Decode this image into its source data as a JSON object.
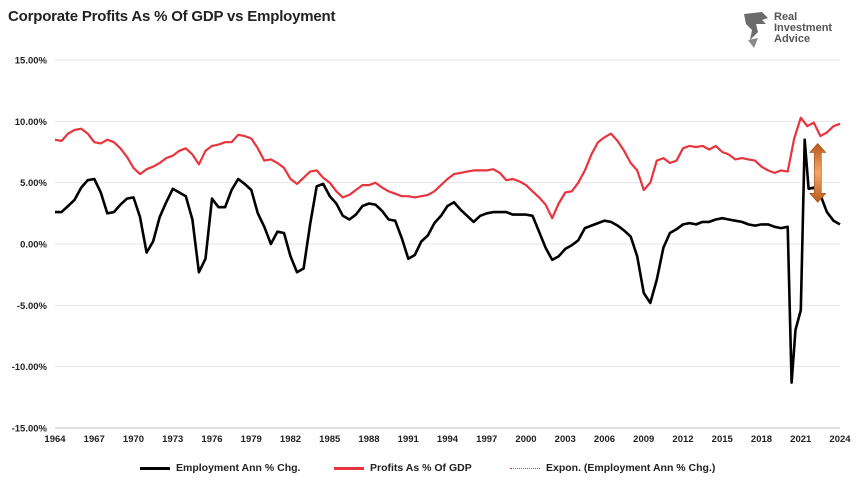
{
  "header": {
    "title": "Corporate Profits As % Of GDP vs Employment"
  },
  "logo": {
    "line1": "Real",
    "line2": "Investment",
    "line3": "Advice",
    "icon": "eagle-head-icon"
  },
  "colors": {
    "employment": "#000000",
    "profits": "#e8343d",
    "trend": "#e8343d",
    "arrow": "#e8823a",
    "grid": "#e6e6e6"
  },
  "legend": {
    "items": [
      {
        "label": "Employment Ann % Chg."
      },
      {
        "label": "Profits As % Of GDP"
      },
      {
        "label": "Expon. (Employment Ann % Chg.)"
      }
    ]
  },
  "chart_data": {
    "type": "line",
    "title": "Corporate Profits As % Of GDP vs Employment",
    "xlabel": "",
    "ylabel": "",
    "xlim": [
      1964,
      2024
    ],
    "ylim": [
      -15,
      15
    ],
    "y_tick_labels": [
      "15.00%",
      "10.00%",
      "5.00%",
      "0.00%",
      "-5.00%",
      "-10.00%",
      "-15.00%"
    ],
    "y_tick_values": [
      15,
      10,
      5,
      0,
      -5,
      -10,
      -15
    ],
    "x_tick_labels": [
      "1964",
      "1967",
      "1970",
      "1973",
      "1976",
      "1979",
      "1982",
      "1985",
      "1988",
      "1991",
      "1994",
      "1997",
      "2000",
      "2003",
      "2006",
      "2009",
      "2012",
      "2015",
      "2018",
      "2021",
      "2024"
    ],
    "x_tick_values": [
      1964,
      1967,
      1970,
      1973,
      1976,
      1979,
      1982,
      1985,
      1988,
      1991,
      1994,
      1997,
      2000,
      2003,
      2006,
      2009,
      2012,
      2015,
      2018,
      2021,
      2024
    ],
    "grid": "horizontal",
    "legend_position": "bottom",
    "series": [
      {
        "name": "Employment Ann % Chg.",
        "points": [
          [
            1964,
            2.6
          ],
          [
            1964.5,
            2.6
          ],
          [
            1965,
            3.1
          ],
          [
            1965.5,
            3.6
          ],
          [
            1966,
            4.6
          ],
          [
            1966.5,
            5.2
          ],
          [
            1967,
            5.3
          ],
          [
            1967.5,
            4.2
          ],
          [
            1968,
            2.5
          ],
          [
            1968.5,
            2.6
          ],
          [
            1969,
            3.2
          ],
          [
            1969.5,
            3.7
          ],
          [
            1970,
            3.8
          ],
          [
            1970.5,
            2.2
          ],
          [
            1971,
            -0.7
          ],
          [
            1971.5,
            0.2
          ],
          [
            1972,
            2.2
          ],
          [
            1972.5,
            3.4
          ],
          [
            1973,
            4.5
          ],
          [
            1973.5,
            4.2
          ],
          [
            1974,
            3.9
          ],
          [
            1974.5,
            2.0
          ],
          [
            1975,
            -2.3
          ],
          [
            1975.5,
            -1.2
          ],
          [
            1976,
            3.7
          ],
          [
            1976.5,
            3.0
          ],
          [
            1977,
            3.0
          ],
          [
            1977.5,
            4.4
          ],
          [
            1978,
            5.3
          ],
          [
            1978.5,
            4.9
          ],
          [
            1979,
            4.4
          ],
          [
            1979.5,
            2.5
          ],
          [
            1980,
            1.4
          ],
          [
            1980.5,
            0.0
          ],
          [
            1981,
            1.0
          ],
          [
            1981.5,
            0.9
          ],
          [
            1982,
            -1.0
          ],
          [
            1982.5,
            -2.3
          ],
          [
            1983,
            -2.0
          ],
          [
            1983.5,
            1.6
          ],
          [
            1984,
            4.7
          ],
          [
            1984.5,
            4.9
          ],
          [
            1985,
            3.9
          ],
          [
            1985.5,
            3.3
          ],
          [
            1986,
            2.3
          ],
          [
            1986.5,
            2.0
          ],
          [
            1987,
            2.4
          ],
          [
            1987.5,
            3.1
          ],
          [
            1988,
            3.3
          ],
          [
            1988.5,
            3.2
          ],
          [
            1989,
            2.7
          ],
          [
            1989.5,
            2.0
          ],
          [
            1990,
            1.9
          ],
          [
            1990.5,
            0.5
          ],
          [
            1991,
            -1.2
          ],
          [
            1991.5,
            -0.9
          ],
          [
            1992,
            0.2
          ],
          [
            1992.5,
            0.7
          ],
          [
            1993,
            1.7
          ],
          [
            1993.5,
            2.3
          ],
          [
            1994,
            3.1
          ],
          [
            1994.5,
            3.4
          ],
          [
            1995,
            2.8
          ],
          [
            1995.5,
            2.3
          ],
          [
            1996,
            1.8
          ],
          [
            1996.5,
            2.3
          ],
          [
            1997,
            2.5
          ],
          [
            1997.5,
            2.6
          ],
          [
            1998,
            2.6
          ],
          [
            1998.5,
            2.6
          ],
          [
            1999,
            2.4
          ],
          [
            1999.5,
            2.4
          ],
          [
            2000,
            2.4
          ],
          [
            2000.5,
            2.3
          ],
          [
            2001,
            1.0
          ],
          [
            2001.5,
            -0.3
          ],
          [
            2002,
            -1.3
          ],
          [
            2002.5,
            -1.0
          ],
          [
            2003,
            -0.4
          ],
          [
            2003.5,
            -0.1
          ],
          [
            2004,
            0.3
          ],
          [
            2004.5,
            1.3
          ],
          [
            2005,
            1.5
          ],
          [
            2005.5,
            1.7
          ],
          [
            2006,
            1.9
          ],
          [
            2006.5,
            1.8
          ],
          [
            2007,
            1.5
          ],
          [
            2007.5,
            1.1
          ],
          [
            2008,
            0.6
          ],
          [
            2008.5,
            -1.0
          ],
          [
            2009,
            -4.0
          ],
          [
            2009.5,
            -4.8
          ],
          [
            2010,
            -2.9
          ],
          [
            2010.5,
            -0.3
          ],
          [
            2011,
            0.9
          ],
          [
            2011.5,
            1.2
          ],
          [
            2012,
            1.6
          ],
          [
            2012.5,
            1.7
          ],
          [
            2013,
            1.6
          ],
          [
            2013.5,
            1.8
          ],
          [
            2014,
            1.8
          ],
          [
            2014.5,
            2.0
          ],
          [
            2015,
            2.1
          ],
          [
            2015.5,
            2.0
          ],
          [
            2016,
            1.9
          ],
          [
            2016.5,
            1.8
          ],
          [
            2017,
            1.6
          ],
          [
            2017.5,
            1.5
          ],
          [
            2018,
            1.6
          ],
          [
            2018.5,
            1.6
          ],
          [
            2019,
            1.4
          ],
          [
            2019.5,
            1.3
          ],
          [
            2020,
            1.4
          ],
          [
            2020.3,
            -11.3
          ],
          [
            2020.6,
            -7.0
          ],
          [
            2021,
            -5.4
          ],
          [
            2021.3,
            8.5
          ],
          [
            2021.6,
            4.5
          ],
          [
            2022,
            4.6
          ],
          [
            2022.5,
            4.0
          ],
          [
            2023,
            2.6
          ],
          [
            2023.5,
            1.9
          ],
          [
            2024,
            1.6
          ]
        ]
      },
      {
        "name": "Profits As % Of GDP",
        "points": [
          [
            1964,
            8.5
          ],
          [
            1964.5,
            8.4
          ],
          [
            1965,
            9.0
          ],
          [
            1965.5,
            9.3
          ],
          [
            1966,
            9.4
          ],
          [
            1966.5,
            9.0
          ],
          [
            1967,
            8.3
          ],
          [
            1967.5,
            8.2
          ],
          [
            1968,
            8.5
          ],
          [
            1968.5,
            8.3
          ],
          [
            1969,
            7.8
          ],
          [
            1969.5,
            7.1
          ],
          [
            1970,
            6.2
          ],
          [
            1970.5,
            5.7
          ],
          [
            1971,
            6.1
          ],
          [
            1971.5,
            6.3
          ],
          [
            1972,
            6.6
          ],
          [
            1972.5,
            7.0
          ],
          [
            1973,
            7.2
          ],
          [
            1973.5,
            7.6
          ],
          [
            1974,
            7.8
          ],
          [
            1974.5,
            7.3
          ],
          [
            1975,
            6.5
          ],
          [
            1975.5,
            7.6
          ],
          [
            1976,
            8.0
          ],
          [
            1976.5,
            8.1
          ],
          [
            1977,
            8.3
          ],
          [
            1977.5,
            8.3
          ],
          [
            1978,
            8.9
          ],
          [
            1978.5,
            8.8
          ],
          [
            1979,
            8.6
          ],
          [
            1979.5,
            7.8
          ],
          [
            1980,
            6.8
          ],
          [
            1980.5,
            6.9
          ],
          [
            1981,
            6.6
          ],
          [
            1981.5,
            6.2
          ],
          [
            1982,
            5.3
          ],
          [
            1982.5,
            4.9
          ],
          [
            1983,
            5.4
          ],
          [
            1983.5,
            5.9
          ],
          [
            1984,
            6.0
          ],
          [
            1984.5,
            5.4
          ],
          [
            1985,
            5.0
          ],
          [
            1985.5,
            4.3
          ],
          [
            1986,
            3.8
          ],
          [
            1986.5,
            4.0
          ],
          [
            1987,
            4.4
          ],
          [
            1987.5,
            4.8
          ],
          [
            1988,
            4.8
          ],
          [
            1988.5,
            5.0
          ],
          [
            1989,
            4.6
          ],
          [
            1989.5,
            4.3
          ],
          [
            1990,
            4.1
          ],
          [
            1990.5,
            3.9
          ],
          [
            1991,
            3.9
          ],
          [
            1991.5,
            3.8
          ],
          [
            1992,
            3.9
          ],
          [
            1992.5,
            4.0
          ],
          [
            1993,
            4.3
          ],
          [
            1993.5,
            4.8
          ],
          [
            1994,
            5.3
          ],
          [
            1994.5,
            5.7
          ],
          [
            1995,
            5.8
          ],
          [
            1995.5,
            5.9
          ],
          [
            1996,
            6.0
          ],
          [
            1996.5,
            6.0
          ],
          [
            1997,
            6.0
          ],
          [
            1997.5,
            6.1
          ],
          [
            1998,
            5.8
          ],
          [
            1998.5,
            5.2
          ],
          [
            1999,
            5.3
          ],
          [
            1999.5,
            5.1
          ],
          [
            2000,
            4.8
          ],
          [
            2000.5,
            4.3
          ],
          [
            2001,
            3.8
          ],
          [
            2001.5,
            3.2
          ],
          [
            2002,
            2.1
          ],
          [
            2002.5,
            3.3
          ],
          [
            2003,
            4.2
          ],
          [
            2003.5,
            4.3
          ],
          [
            2004,
            5.0
          ],
          [
            2004.5,
            6.0
          ],
          [
            2005,
            7.3
          ],
          [
            2005.5,
            8.3
          ],
          [
            2006,
            8.7
          ],
          [
            2006.5,
            9.0
          ],
          [
            2007,
            8.4
          ],
          [
            2007.5,
            7.6
          ],
          [
            2008,
            6.6
          ],
          [
            2008.5,
            6.0
          ],
          [
            2009,
            4.4
          ],
          [
            2009.5,
            5.0
          ],
          [
            2010,
            6.8
          ],
          [
            2010.5,
            7.0
          ],
          [
            2011,
            6.6
          ],
          [
            2011.5,
            6.8
          ],
          [
            2012,
            7.8
          ],
          [
            2012.5,
            8.0
          ],
          [
            2013,
            7.9
          ],
          [
            2013.5,
            8.0
          ],
          [
            2014,
            7.7
          ],
          [
            2014.5,
            8.0
          ],
          [
            2015,
            7.5
          ],
          [
            2015.5,
            7.3
          ],
          [
            2016,
            6.9
          ],
          [
            2016.5,
            7.0
          ],
          [
            2017,
            6.9
          ],
          [
            2017.5,
            6.8
          ],
          [
            2018,
            6.3
          ],
          [
            2018.5,
            6.0
          ],
          [
            2019,
            5.8
          ],
          [
            2019.5,
            6.0
          ],
          [
            2020,
            5.9
          ],
          [
            2020.5,
            8.6
          ],
          [
            2021,
            10.3
          ],
          [
            2021.5,
            9.6
          ],
          [
            2022,
            9.9
          ],
          [
            2022.5,
            8.8
          ],
          [
            2023,
            9.1
          ],
          [
            2023.5,
            9.6
          ],
          [
            2024,
            9.8
          ]
        ]
      },
      {
        "name": "Expon. (Employment Ann % Chg.)",
        "style": "dotted",
        "points": []
      }
    ],
    "annotations": [
      {
        "type": "double-arrow",
        "x": 2022.3,
        "y_from": 8.2,
        "y_to": 3.4
      }
    ]
  }
}
